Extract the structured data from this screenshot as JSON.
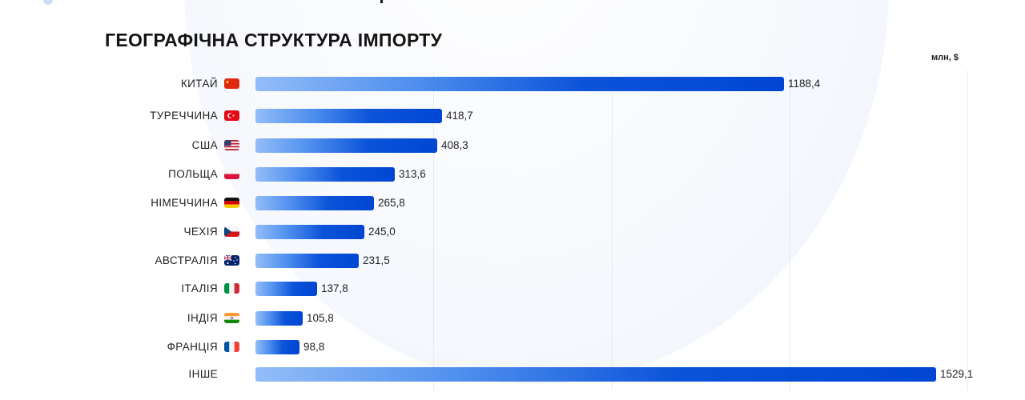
{
  "chart_data": {
    "type": "bar",
    "orientation": "horizontal",
    "title": "ГЕОГРАФІЧНА СТРУКТУРА ІМПОРТУ",
    "unit": "млн, $",
    "categories": [
      "КИТАЙ",
      "ТУРЕЧЧИНА",
      "США",
      "ПОЛЬЩА",
      "НІМЕЧЧИНА",
      "ЧЕХІЯ",
      "АВСТРАЛІЯ",
      "ІТАЛІЯ",
      "ІНДІЯ",
      "ФРАНЦІЯ",
      "ІНШЕ"
    ],
    "values": [
      1188.4,
      418.7,
      408.3,
      313.6,
      265.8,
      245.0,
      231.5,
      137.8,
      105.8,
      98.8,
      1529.1
    ],
    "value_labels": [
      "1188,4",
      "418,7",
      "408,3",
      "313,6",
      "265,8",
      "245,0",
      "231,5",
      "137,8",
      "105,8",
      "98,8",
      "1529,1"
    ],
    "flags": [
      "china-flag",
      "turkey-flag",
      "usa-flag",
      "poland-flag",
      "germany-flag",
      "czechia-flag",
      "australia-flag",
      "italy-flag",
      "india-flag",
      "france-flag",
      ""
    ],
    "xlim": [
      0,
      1600
    ],
    "grid": true,
    "colors": {
      "bar_start": "#93bdf8",
      "bar_end": "#0046d3"
    }
  }
}
